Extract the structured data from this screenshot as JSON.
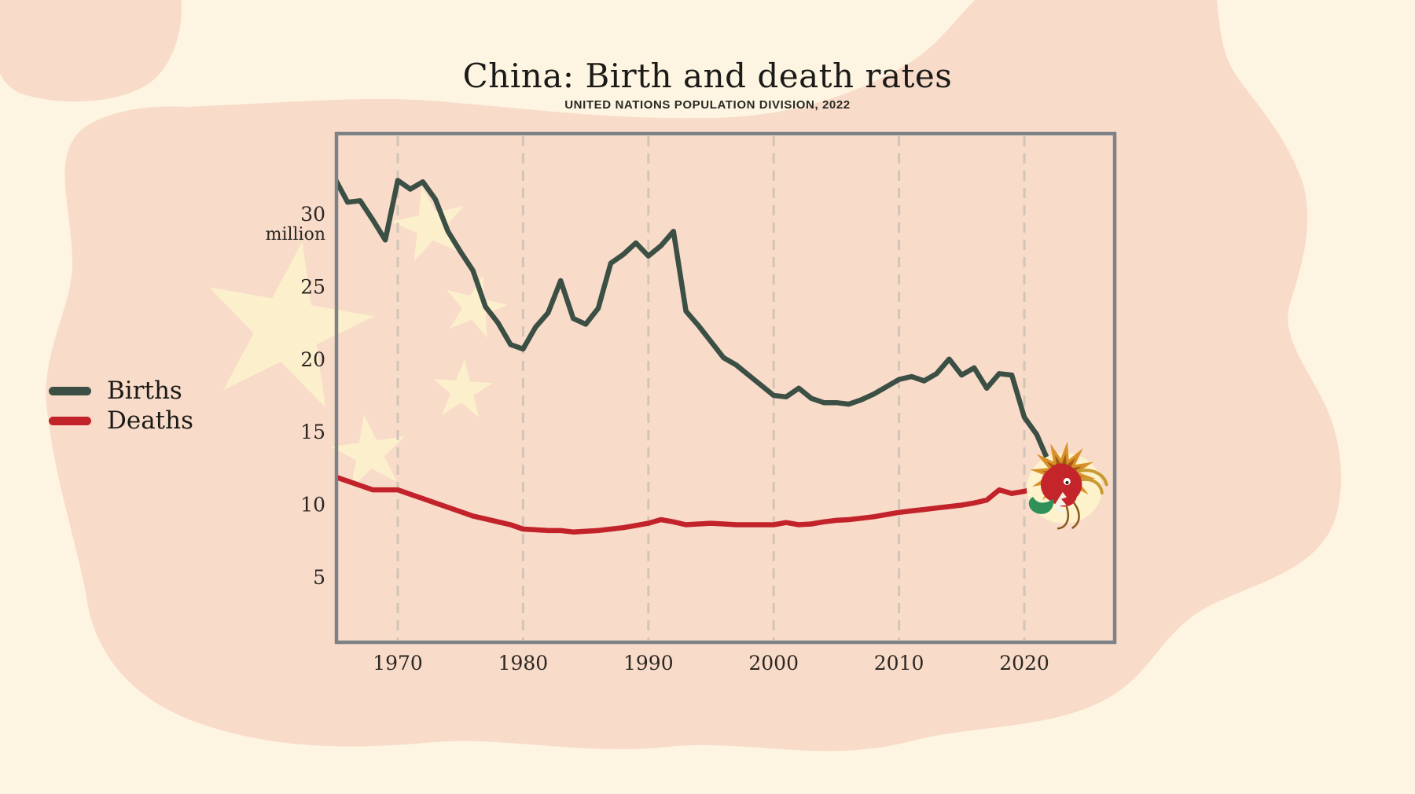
{
  "title": "China: Birth and death rates",
  "subtitle": "UNITED NATIONS POPULATION DIVISION, 2022",
  "legend": {
    "items": [
      {
        "label": "Births",
        "color": "#3b4f45"
      },
      {
        "label": "Deaths",
        "color": "#c2222a"
      }
    ]
  },
  "colors": {
    "background_cream": "#fdf5e2",
    "map_pink": "#f8dbc9",
    "star_pale_yellow": "#fcf0cc",
    "plot_border_gray": "#7c8285",
    "gridline_tan": "#d2c5b8",
    "births_green": "#3b4f45",
    "deaths_red": "#c2222a",
    "text_dark": "#1c1a17",
    "dragon_glow": "#fdf2cb"
  },
  "chart_data": {
    "type": "line",
    "title": "China: Birth and death rates",
    "subtitle": "UNITED NATIONS POPULATION DIVISION, 2022",
    "xlabel": "",
    "ylabel": "million",
    "x_ticks": [
      1970,
      1980,
      1990,
      2000,
      2010,
      2020
    ],
    "y_ticks": [
      5,
      10,
      15,
      20,
      25,
      30
    ],
    "xlim": [
      1965,
      2027
    ],
    "ylim": [
      0.5,
      35.5
    ],
    "grid": "vertical-dashed",
    "legend_position": "left-outside",
    "annotations": [
      "chinese-dragon illustration covering the point where the lines cross (~2022)"
    ],
    "x": [
      1965,
      1966,
      1967,
      1968,
      1969,
      1970,
      1971,
      1972,
      1973,
      1974,
      1975,
      1976,
      1977,
      1978,
      1979,
      1980,
      1981,
      1982,
      1983,
      1984,
      1985,
      1986,
      1987,
      1988,
      1989,
      1990,
      1991,
      1992,
      1993,
      1994,
      1995,
      1996,
      1997,
      1998,
      1999,
      2000,
      2001,
      2002,
      2003,
      2004,
      2005,
      2006,
      2007,
      2008,
      2009,
      2010,
      2011,
      2012,
      2013,
      2014,
      2015,
      2016,
      2017,
      2018,
      2019,
      2020,
      2021,
      2022,
      2023,
      2024,
      2025
    ],
    "series": [
      {
        "name": "Births",
        "color": "#3b4f45",
        "values": [
          32.4,
          30.8,
          30.9,
          29.6,
          28.2,
          32.3,
          31.7,
          32.2,
          31.0,
          28.8,
          27.4,
          26.1,
          23.6,
          22.5,
          21.0,
          20.7,
          22.2,
          23.2,
          25.4,
          22.8,
          22.4,
          23.5,
          26.6,
          27.2,
          28.0,
          27.1,
          27.8,
          28.8,
          23.3,
          22.3,
          21.2,
          20.1,
          19.6,
          18.9,
          18.2,
          17.5,
          17.4,
          18.0,
          17.3,
          17.0,
          17.0,
          16.9,
          17.2,
          17.6,
          18.1,
          18.6,
          18.8,
          18.5,
          19.0,
          20.0,
          18.9,
          19.4,
          18.0,
          19.0,
          18.9,
          16.0,
          14.8,
          12.8,
          11.2,
          10.2,
          9.6
        ]
      },
      {
        "name": "Deaths",
        "color": "#c2222a",
        "values": [
          11.9,
          11.6,
          11.3,
          11.0,
          11.0,
          11.0,
          10.7,
          10.4,
          10.1,
          9.8,
          9.5,
          9.2,
          9.0,
          8.8,
          8.6,
          8.3,
          8.25,
          8.2,
          8.2,
          8.1,
          8.15,
          8.2,
          8.3,
          8.4,
          8.55,
          8.7,
          8.95,
          8.8,
          8.6,
          8.65,
          8.7,
          8.65,
          8.6,
          8.6,
          8.6,
          8.6,
          8.75,
          8.6,
          8.65,
          8.8,
          8.9,
          8.95,
          9.05,
          9.15,
          9.3,
          9.45,
          9.55,
          9.65,
          9.75,
          9.85,
          9.95,
          10.1,
          10.3,
          11.0,
          10.75,
          10.9,
          11.1,
          11.3,
          11.5,
          11.7,
          11.8
        ]
      }
    ]
  }
}
